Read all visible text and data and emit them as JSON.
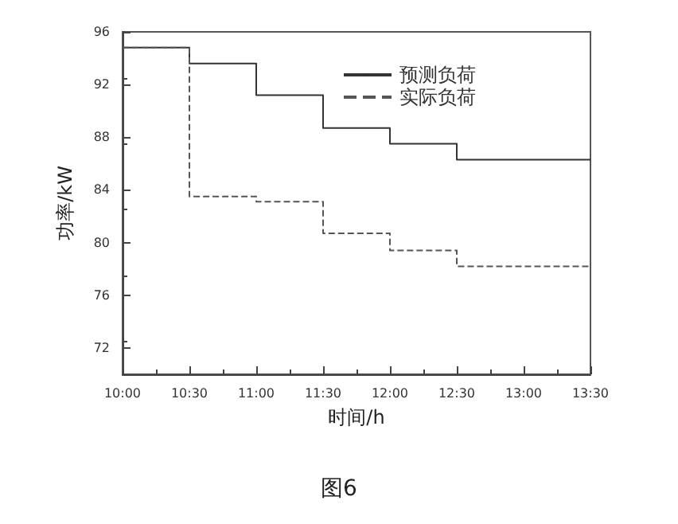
{
  "chart_data": {
    "type": "step",
    "xlabel": "时间/h",
    "ylabel": "功率/kW",
    "annotations": [
      "图6"
    ],
    "x": [
      10,
      10.5,
      11,
      11.5,
      12,
      12.5,
      13,
      13.5
    ],
    "series": [
      {
        "name": "预测负荷",
        "color": "#333333",
        "line_style": "solid",
        "values": [
          94.8,
          93.6,
          91.2,
          88.7,
          87.5,
          86.3,
          86.3,
          86.3
        ]
      },
      {
        "name": "实际负荷",
        "color": "#555555",
        "line_style": "dashed",
        "values": [
          94.8,
          83.5,
          83.1,
          80.7,
          79.4,
          78.2,
          78.2,
          78.2
        ]
      }
    ],
    "xlim": [
      10,
      13.5
    ],
    "xticks": [
      {
        "value": 10,
        "label": "10:00"
      },
      {
        "value": 10.5,
        "label": "10:30"
      },
      {
        "value": 11,
        "label": "11:00"
      },
      {
        "value": 11.5,
        "label": "11:30"
      },
      {
        "value": 12,
        "label": "12:00"
      },
      {
        "value": 12.5,
        "label": "12:30"
      },
      {
        "value": 13,
        "label": "13:00"
      },
      {
        "value": 13.5,
        "label": "13:30"
      }
    ],
    "ylim": [
      70,
      96
    ],
    "yticks": [
      72,
      76,
      80,
      84,
      88,
      92,
      96
    ],
    "grid": false,
    "legend": "top right",
    "marker": "none"
  }
}
